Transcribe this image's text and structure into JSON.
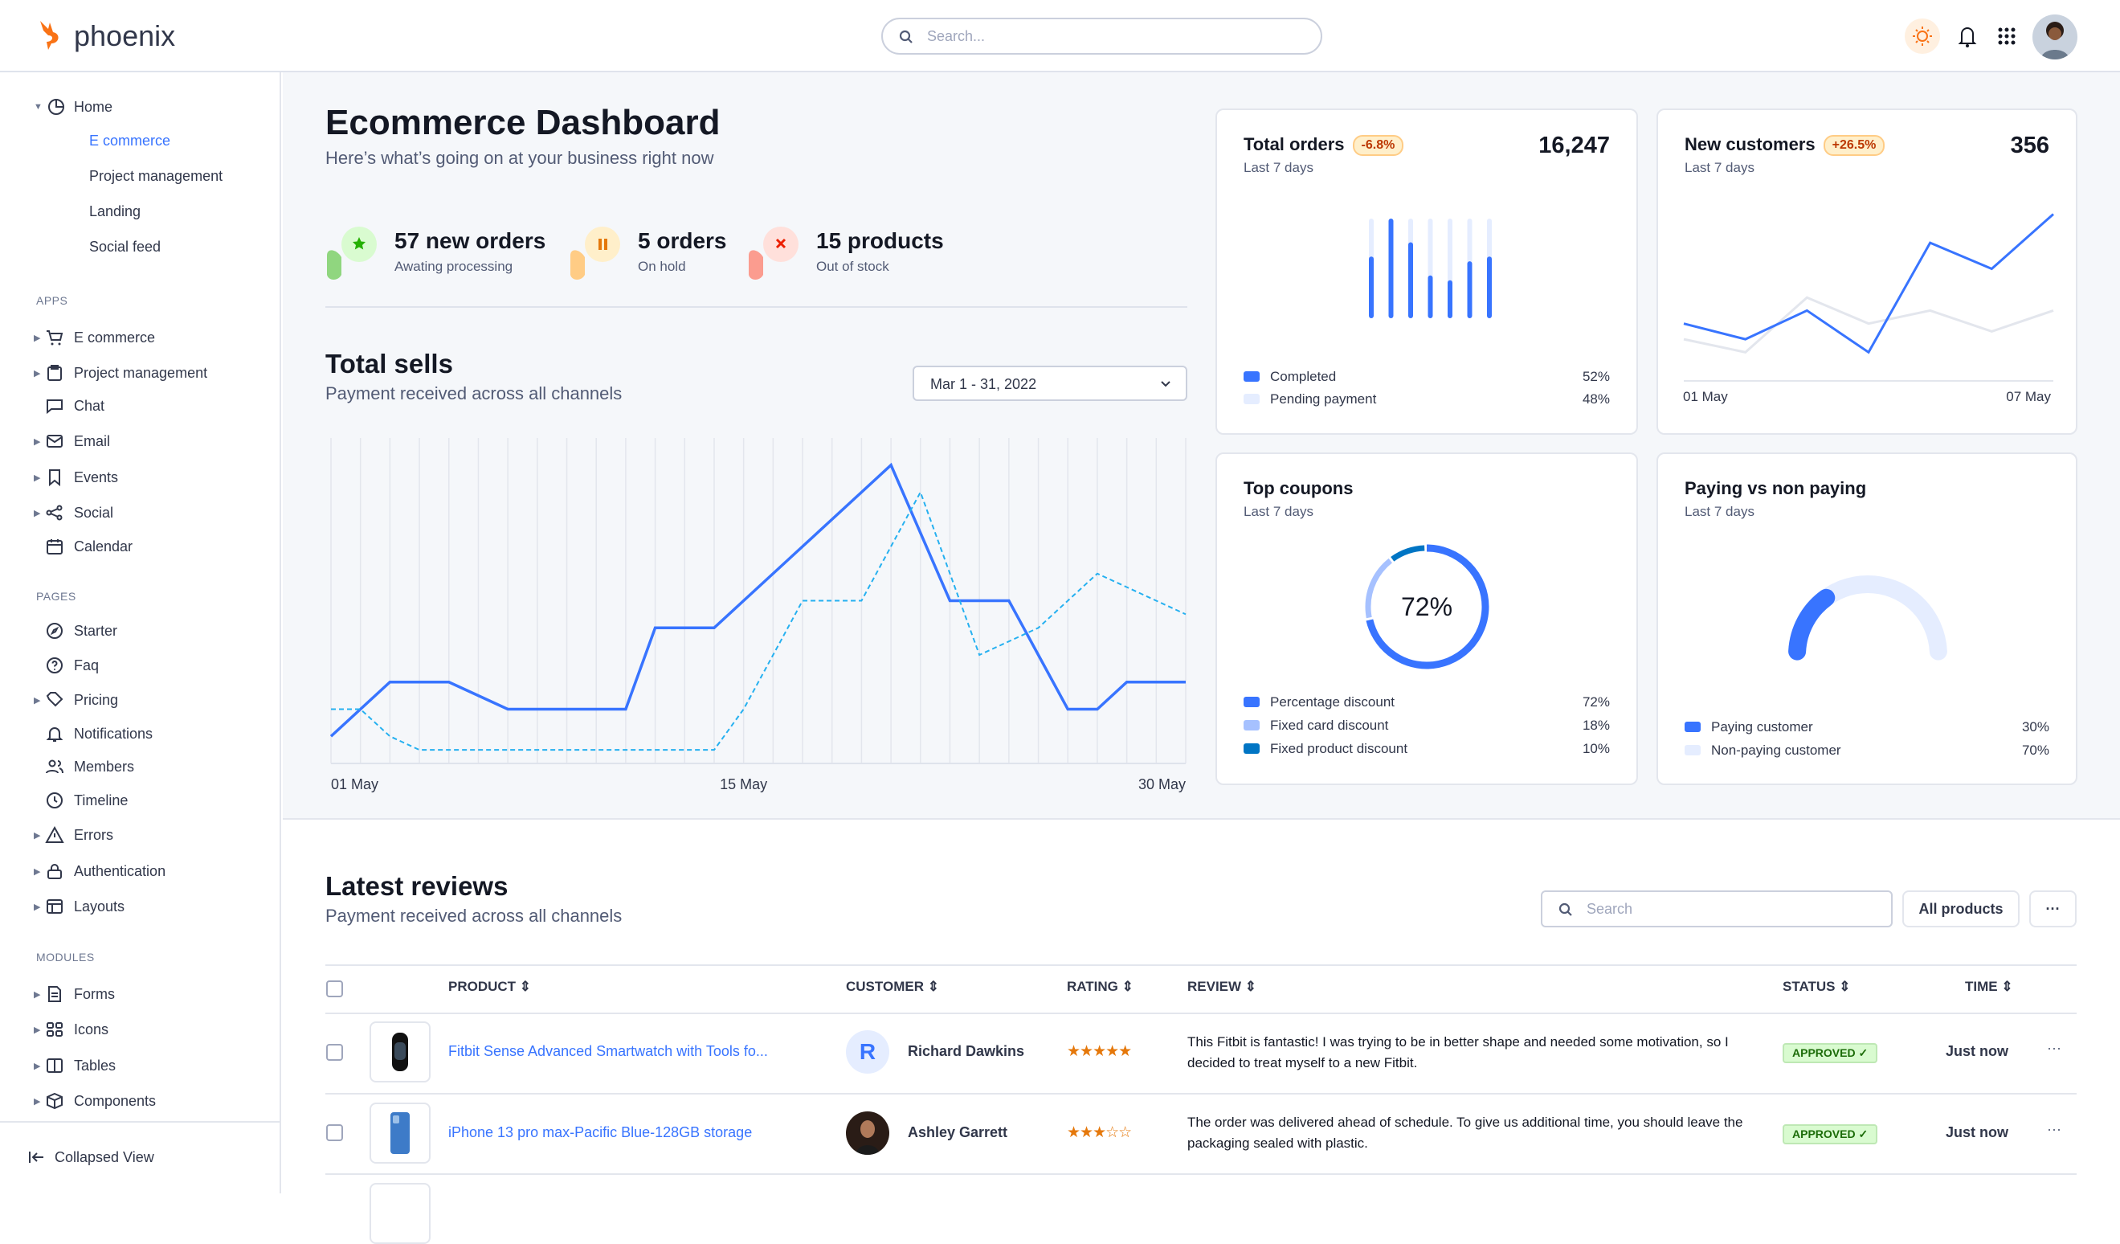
{
  "colors": {
    "primary": "#3874ff",
    "pending": "#e5edff",
    "fixed_card": "#a6c1ff",
    "fixed_product": "#0075c4",
    "dashed": "#25b0f0",
    "warning": "#e5780b",
    "success": "#25b003"
  },
  "header": {
    "logo_text": "phoenix",
    "search_placeholder": "Search...",
    "icons": [
      "sun-icon",
      "bell-icon",
      "apps-grid-icon",
      "avatar"
    ]
  },
  "sidebar": {
    "home": {
      "label": "Home",
      "children": [
        "E commerce",
        "Project management",
        "Landing",
        "Social feed"
      ],
      "active": "E commerce"
    },
    "sections": [
      {
        "title": "APPS",
        "items": [
          {
            "label": "E commerce",
            "icon": "cart-icon",
            "caret": true
          },
          {
            "label": "Project management",
            "icon": "clipboard-icon",
            "caret": true
          },
          {
            "label": "Chat",
            "icon": "chat-icon",
            "caret": false
          },
          {
            "label": "Email",
            "icon": "mail-icon",
            "caret": true
          },
          {
            "label": "Events",
            "icon": "bookmark-icon",
            "caret": true
          },
          {
            "label": "Social",
            "icon": "share-icon",
            "caret": true
          },
          {
            "label": "Calendar",
            "icon": "calendar-icon",
            "caret": false
          }
        ]
      },
      {
        "title": "PAGES",
        "items": [
          {
            "label": "Starter",
            "icon": "compass-icon",
            "caret": false
          },
          {
            "label": "Faq",
            "icon": "help-icon",
            "caret": false
          },
          {
            "label": "Pricing",
            "icon": "tag-icon",
            "caret": true
          },
          {
            "label": "Notifications",
            "icon": "bell-icon",
            "caret": false
          },
          {
            "label": "Members",
            "icon": "users-icon",
            "caret": false
          },
          {
            "label": "Timeline",
            "icon": "clock-icon",
            "caret": false
          },
          {
            "label": "Errors",
            "icon": "alert-icon",
            "caret": true
          },
          {
            "label": "Authentication",
            "icon": "lock-icon",
            "caret": true
          },
          {
            "label": "Layouts",
            "icon": "layout-icon",
            "caret": true
          }
        ]
      },
      {
        "title": "MODULES",
        "items": [
          {
            "label": "Forms",
            "icon": "form-icon",
            "caret": true
          },
          {
            "label": "Icons",
            "icon": "grid-icon",
            "caret": true
          },
          {
            "label": "Tables",
            "icon": "table-icon",
            "caret": true
          },
          {
            "label": "Components",
            "icon": "package-icon",
            "caret": true
          }
        ]
      }
    ],
    "collapse_label": "Collapsed View"
  },
  "page": {
    "title": "Ecommerce Dashboard",
    "subtitle": "Here’s what’s going on at your business right now"
  },
  "stats": [
    {
      "title": "57 new orders",
      "subtitle": "Awating processing",
      "icon": "star-icon",
      "color": "#25b003",
      "bg": "#d9fbd0",
      "shape": "#90d67f"
    },
    {
      "title": "5 orders",
      "subtitle": "On hold",
      "icon": "pause-icon",
      "color": "#e5780b",
      "bg": "#ffefca",
      "shape": "#ffcc85"
    },
    {
      "title": "15 products",
      "subtitle": "Out of stock",
      "icon": "x-icon",
      "color": "#ec1f00",
      "bg": "#ffe0db",
      "shape": "#fb9c8f"
    }
  ],
  "total_sells": {
    "title": "Total sells",
    "subtitle": "Payment received across all channels",
    "date_range": "Mar 1 - 31, 2022"
  },
  "cards": {
    "total_orders": {
      "title": "Total orders",
      "badge": "-6.8%",
      "value": "16,247",
      "subtitle": "Last 7 days",
      "legend": [
        {
          "label": "Completed",
          "value": "52%"
        },
        {
          "label": "Pending payment",
          "value": "48%"
        }
      ]
    },
    "new_customers": {
      "title": "New customers",
      "badge": "+26.5%",
      "value": "356",
      "subtitle": "Last 7 days",
      "x_start": "01 May",
      "x_end": "07 May"
    },
    "top_coupons": {
      "title": "Top coupons",
      "subtitle": "Last 7 days",
      "center": "72%",
      "legend": [
        {
          "label": "Percentage discount",
          "value": "72%"
        },
        {
          "label": "Fixed card discount",
          "value": "18%"
        },
        {
          "label": "Fixed product discount",
          "value": "10%"
        }
      ]
    },
    "paying": {
      "title": "Paying vs non paying",
      "subtitle": "Last 7 days",
      "legend": [
        {
          "label": "Paying customer",
          "value": "30%"
        },
        {
          "label": "Non-paying customer",
          "value": "70%"
        }
      ]
    }
  },
  "chart_data": [
    {
      "type": "line",
      "x": [
        "01 May",
        "02 May",
        "03 May",
        "04 May",
        "05 May",
        "06 May",
        "07 May",
        "08 May",
        "09 May",
        "10 May",
        "11 May",
        "12 May",
        "13 May",
        "14 May",
        "15 May",
        "16 May",
        "17 May",
        "18 May",
        "19 May",
        "20 May",
        "21 May",
        "22 May",
        "23 May",
        "24 May",
        "25 May",
        "26 May",
        "27 May",
        "28 May",
        "29 May",
        "30 May"
      ],
      "xticks": [
        "01 May",
        "15 May",
        "30 May"
      ],
      "ylim": [
        0,
        12
      ],
      "grid": "vertical",
      "series": [
        {
          "style": "solid",
          "values": [
            1,
            2,
            3,
            3,
            3,
            2.5,
            2,
            2,
            2,
            2,
            2,
            5,
            5,
            5,
            6,
            7,
            8,
            9,
            10,
            11,
            8.5,
            6,
            6,
            6,
            4,
            2,
            2,
            3,
            3,
            3
          ]
        },
        {
          "style": "dashed",
          "values": [
            2,
            2,
            1,
            0.5,
            0.5,
            0.5,
            0.5,
            0.5,
            0.5,
            0.5,
            0.5,
            0.5,
            0.5,
            0.5,
            2,
            4,
            6,
            6,
            6,
            8,
            10,
            7,
            4,
            4.5,
            5,
            6,
            7,
            6.5,
            6,
            5.5
          ]
        }
      ]
    },
    {
      "type": "bar",
      "stacked": true,
      "categories": [
        "1",
        "2",
        "3",
        "4",
        "5",
        "6",
        "7"
      ],
      "series": [
        {
          "name": "Completed",
          "values": [
            60,
            100,
            75,
            40,
            35,
            55,
            60
          ]
        },
        {
          "name": "Pending payment",
          "values": [
            40,
            0,
            25,
            60,
            65,
            45,
            40
          ]
        }
      ],
      "ylim": [
        0,
        100
      ]
    },
    {
      "type": "line",
      "x": [
        "01 May",
        "02 May",
        "03 May",
        "04 May",
        "05 May",
        "06 May",
        "07 May"
      ],
      "ylim": [
        0,
        70
      ],
      "series": [
        {
          "style": "primary",
          "values": [
            22,
            16,
            27,
            11,
            53,
            43,
            64
          ]
        },
        {
          "style": "gray",
          "values": [
            16,
            11,
            32,
            22,
            27,
            19,
            27
          ]
        }
      ]
    },
    {
      "type": "pie",
      "donut": true,
      "categories": [
        "Percentage discount",
        "Fixed card discount",
        "Fixed product discount"
      ],
      "values": [
        72,
        18,
        10
      ]
    },
    {
      "type": "pie",
      "gauge": true,
      "categories": [
        "Paying customer",
        "Non-paying customer"
      ],
      "values": [
        30,
        70
      ]
    }
  ],
  "reviews": {
    "title": "Latest reviews",
    "subtitle": "Payment received across all channels",
    "search_placeholder": "Search",
    "filter_label": "All products",
    "more_label": "···",
    "columns": [
      "PRODUCT",
      "CUSTOMER",
      "RATING",
      "REVIEW",
      "STATUS",
      "TIME"
    ],
    "rows": [
      {
        "product": "Fitbit Sense Advanced Smartwatch with Tools fo...",
        "customer": "Richard Dawkins",
        "initial": "R",
        "rating": 5,
        "stars": "★★★★★",
        "review": "This Fitbit is fantastic! I was trying to be in better shape and needed some motivation, so I decided to treat myself to a new Fitbit.",
        "status": "APPROVED ✓",
        "time": "Just now"
      },
      {
        "product": "iPhone 13 pro max-Pacific Blue-128GB storage",
        "customer": "Ashley Garrett",
        "initial": "",
        "rating": 3,
        "stars": "★★★☆☆",
        "review": "The order was delivered ahead of schedule. To give us additional time, you should leave the packaging sealed with plastic.",
        "status": "APPROVED ✓",
        "time": "Just now"
      }
    ]
  }
}
